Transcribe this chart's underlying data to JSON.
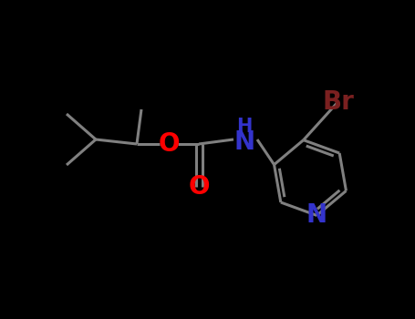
{
  "background_color": "#000000",
  "bond_color": "#808080",
  "o_color": "#ff0000",
  "n_color": "#3333cc",
  "br_color": "#7b2020",
  "bond_width": 2.2,
  "fig_width": 4.55,
  "fig_height": 3.5,
  "dpi": 100,
  "xlim": [
    0,
    455
  ],
  "ylim": [
    0,
    350
  ]
}
